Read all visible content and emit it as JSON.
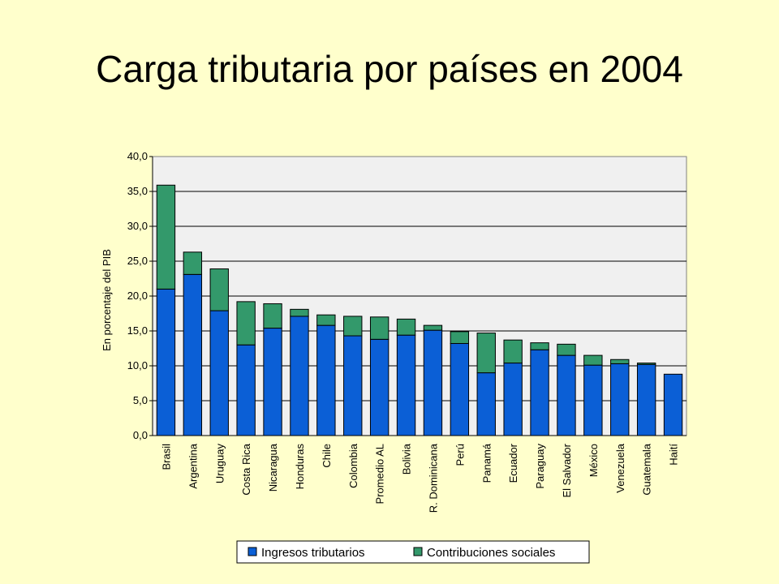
{
  "title": "Carga tributaria por países en 2004",
  "chart_data": {
    "type": "bar",
    "stacked": true,
    "title": "Carga tributaria por países en 2004",
    "xlabel": "",
    "ylabel": "En porcentaje del PIB",
    "ylim": [
      0,
      40
    ],
    "yticks": [
      "0,0",
      "5,0",
      "10,0",
      "15,0",
      "20,0",
      "25,0",
      "30,0",
      "35,0",
      "40,0"
    ],
    "grid": true,
    "legend_position": "bottom",
    "categories": [
      "Brasil",
      "Argentina",
      "Uruguay",
      "Costa Rica",
      "Nicaragua",
      "Honduras",
      "Chile",
      "Colombia",
      "Promedio AL",
      "Bolivia",
      "R. Dominicana",
      "Perú",
      "Panamá",
      "Ecuador",
      "Paraguay",
      "El Salvador",
      "México",
      "Venezuela",
      "Guatemala",
      "Haití"
    ],
    "series": [
      {
        "name": "Ingresos tributarios",
        "color": "#0b5fd6",
        "values": [
          21.0,
          23.1,
          17.9,
          13.0,
          15.4,
          17.1,
          15.8,
          14.3,
          13.8,
          14.4,
          15.1,
          13.2,
          9.0,
          10.4,
          12.3,
          11.5,
          10.1,
          10.3,
          10.2,
          8.8
        ]
      },
      {
        "name": "Contribuciones sociales",
        "color": "#33996b",
        "values": [
          14.9,
          3.2,
          6.0,
          6.2,
          3.5,
          1.0,
          1.5,
          2.8,
          3.2,
          2.3,
          0.7,
          1.7,
          5.7,
          3.3,
          1.0,
          1.6,
          1.4,
          0.6,
          0.2,
          0.0
        ]
      }
    ]
  }
}
